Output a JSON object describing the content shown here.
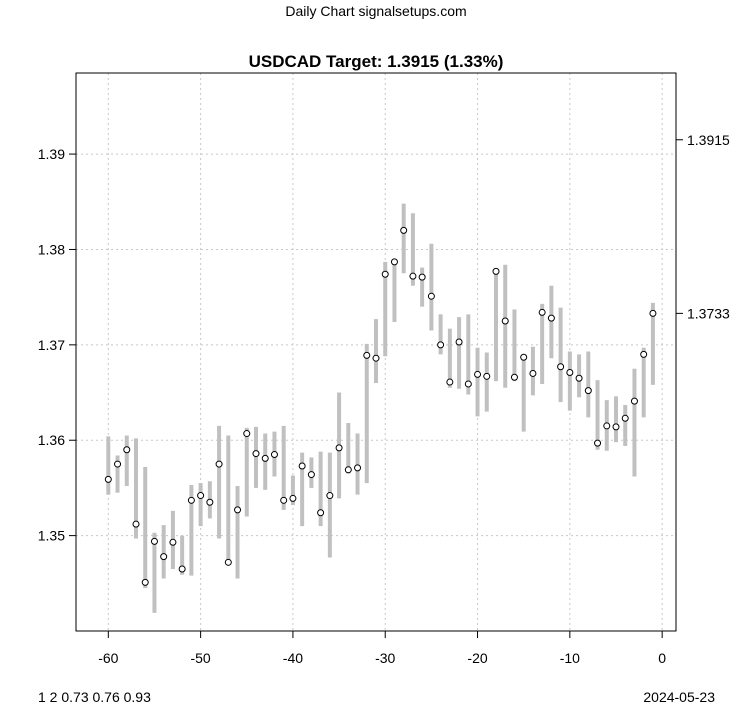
{
  "header": {
    "supertitle": "Daily Chart signalsetups.com",
    "title": "USDCAD Target: 1.3915 (1.33%)"
  },
  "footer": {
    "left": "1 2 0.73 0.76 0.93",
    "right": "2024-05-23"
  },
  "chart_data": {
    "type": "range-dot",
    "title": "USDCAD Target: 1.3915 (1.33%)",
    "xlabel": "",
    "ylabel": "",
    "xlim": [
      -63.5,
      1.5
    ],
    "ylim": [
      1.34,
      1.3985
    ],
    "grid": true,
    "x_ticks": [
      -60,
      -50,
      -40,
      -30,
      -20,
      -10,
      0
    ],
    "x_tick_labels": [
      "-60",
      "-50",
      "-40",
      "-30",
      "-20",
      "-10",
      "0"
    ],
    "y_ticks": [
      1.35,
      1.36,
      1.37,
      1.38,
      1.39
    ],
    "y_tick_labels": [
      "1.35",
      "1.36",
      "1.37",
      "1.38",
      "1.39"
    ],
    "right_axis_ticks": [
      1.3915,
      1.3733
    ],
    "right_axis_labels": [
      "1.3915",
      "1.3733"
    ],
    "colors": {
      "range_bar": "#c0c0c0",
      "grid": "#c8c8c8",
      "point_fill": "#ffffff",
      "point_stroke": "#000000"
    },
    "x": [
      -60,
      -59,
      -58,
      -57,
      -56,
      -55,
      -54,
      -53,
      -52,
      -51,
      -50,
      -49,
      -48,
      -47,
      -46,
      -45,
      -44,
      -43,
      -42,
      -41,
      -40,
      -39,
      -38,
      -37,
      -36,
      -35,
      -34,
      -33,
      -32,
      -31,
      -30,
      -29,
      -28,
      -27,
      -26,
      -25,
      -24,
      -23,
      -22,
      -21,
      -20,
      -19,
      -18,
      -17,
      -16,
      -15,
      -14,
      -13,
      -12,
      -11,
      -10,
      -9,
      -8,
      -7,
      -6,
      -5,
      -4,
      -3,
      -2,
      -1
    ],
    "close": [
      1.3559,
      1.3575,
      1.359,
      1.3512,
      1.3451,
      1.3494,
      1.3478,
      1.3493,
      1.3465,
      1.3537,
      1.3542,
      1.3535,
      1.3575,
      1.3472,
      1.3527,
      1.3607,
      1.3586,
      1.3581,
      1.3585,
      1.3537,
      1.3539,
      1.3573,
      1.3564,
      1.3524,
      1.3542,
      1.3592,
      1.3569,
      1.3571,
      1.3689,
      1.3686,
      1.3774,
      1.3787,
      1.382,
      1.3772,
      1.3771,
      1.3751,
      1.37,
      1.3661,
      1.3703,
      1.3659,
      1.3669,
      1.3667,
      1.3777,
      1.3725,
      1.3666,
      1.3687,
      1.367,
      1.3734,
      1.3728,
      1.3677,
      1.3671,
      1.3665,
      1.3652,
      1.3597,
      1.3615,
      1.3614,
      1.3623,
      1.3641,
      1.369,
      1.3733
    ],
    "low": [
      1.3543,
      1.3545,
      1.3552,
      1.3497,
      1.3445,
      1.3419,
      1.3455,
      1.3465,
      1.3459,
      1.3458,
      1.351,
      1.3518,
      1.3497,
      1.347,
      1.3455,
      1.352,
      1.355,
      1.3548,
      1.3562,
      1.3527,
      1.3532,
      1.351,
      1.355,
      1.351,
      1.3477,
      1.3539,
      1.3565,
      1.3543,
      1.3555,
      1.366,
      1.3688,
      1.3724,
      1.3775,
      1.3762,
      1.374,
      1.3715,
      1.369,
      1.3655,
      1.3654,
      1.3648,
      1.3625,
      1.363,
      1.3662,
      1.3655,
      1.3662,
      1.3609,
      1.3647,
      1.3659,
      1.3686,
      1.364,
      1.3631,
      1.3645,
      1.3624,
      1.359,
      1.3589,
      1.3598,
      1.3594,
      1.3562,
      1.3624,
      1.3658
    ],
    "high": [
      1.3604,
      1.3584,
      1.3605,
      1.3602,
      1.3572,
      1.3503,
      1.3511,
      1.3526,
      1.35,
      1.3553,
      1.3555,
      1.3557,
      1.3615,
      1.3605,
      1.3552,
      1.3613,
      1.3614,
      1.3607,
      1.3609,
      1.3615,
      1.3563,
      1.3587,
      1.3582,
      1.3588,
      1.3587,
      1.365,
      1.3618,
      1.3607,
      1.3701,
      1.3727,
      1.3787,
      1.3789,
      1.3848,
      1.3838,
      1.3781,
      1.3806,
      1.3732,
      1.3717,
      1.3729,
      1.3732,
      1.3697,
      1.3692,
      1.378,
      1.3784,
      1.3737,
      1.369,
      1.3698,
      1.3743,
      1.3762,
      1.3739,
      1.3693,
      1.369,
      1.3693,
      1.3663,
      1.3642,
      1.3646,
      1.3637,
      1.3675,
      1.3697,
      1.3744
    ]
  }
}
